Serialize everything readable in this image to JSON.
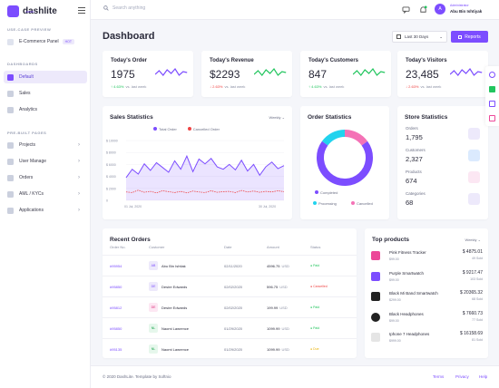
{
  "brand": {
    "name": "dashlite",
    "tag": "ADMIN"
  },
  "colors": {
    "accent": "#7c4dff",
    "up": "#22c55e",
    "down": "#ef4444"
  },
  "sidebar": {
    "sections": [
      "USE-CASE PREVIEW",
      "DASHBOARDS",
      "PRE-BUILT PAGES"
    ],
    "ecommerce": {
      "label": "E-Commerce Panel",
      "badge": "HOT"
    },
    "items": [
      {
        "label": "Default",
        "icon": "dashboard-icon"
      },
      {
        "label": "Sales",
        "icon": "sales-icon"
      },
      {
        "label": "Analytics",
        "icon": "analytics-icon"
      },
      {
        "label": "Projects",
        "icon": "projects-icon"
      },
      {
        "label": "User Manage",
        "icon": "users-icon"
      },
      {
        "label": "Orders",
        "icon": "orders-icon"
      },
      {
        "label": "AML / KYCs",
        "icon": "kyc-icon"
      },
      {
        "label": "Applications",
        "icon": "apps-icon"
      }
    ]
  },
  "topbar": {
    "search_placeholder": "Search anything",
    "user_role": "Administrator",
    "user_name": "Abu Bin Ishtiyak",
    "avatar": "A"
  },
  "header": {
    "title": "Dashboard",
    "range": "Last 30 Days",
    "reports": "Reports"
  },
  "kpis": [
    {
      "title": "Today's Order",
      "value": "1975",
      "trend": "4.63%",
      "dir": "up",
      "suffix": "vs. last week"
    },
    {
      "title": "Today's Revenue",
      "value": "$2293",
      "trend": "2.63%",
      "dir": "down",
      "suffix": "vs. last week"
    },
    {
      "title": "Today's Customers",
      "value": "847",
      "trend": "4.63%",
      "dir": "up",
      "suffix": "vs. last week"
    },
    {
      "title": "Today's Visitors",
      "value": "23,485",
      "trend": "2.63%",
      "dir": "down",
      "suffix": "vs. last week"
    }
  ],
  "sales": {
    "title": "Sales Statistics",
    "period": "Weekly",
    "legend": [
      "Total Order",
      "Cancelled Order"
    ],
    "x_labels": [
      "01 Jul, 2020",
      "30 Jul, 2020"
    ],
    "chart_data": {
      "type": "area",
      "y_ticks": [
        "$ 10000",
        "$ 8000",
        "$ 6000",
        "$ 4000",
        "$ 2000",
        "0"
      ],
      "series": [
        {
          "name": "Total Order",
          "values": [
            3800,
            5200,
            4400,
            6100,
            5000,
            6300,
            5500,
            4700,
            6600,
            5200,
            7400,
            4800,
            6900,
            6100,
            7000,
            5600,
            5200,
            6000,
            5100,
            6700,
            4900,
            6000,
            4200,
            5600,
            6400,
            5300,
            5800
          ]
        },
        {
          "name": "Cancelled Order",
          "values": [
            1400,
            1300,
            1700,
            1350,
            1500,
            1250,
            1600,
            1450,
            1300,
            1500,
            1250,
            1550,
            1400,
            1300,
            1600,
            1350,
            1450,
            1500,
            1300,
            1650,
            1400,
            1550,
            1350,
            1500,
            1400,
            1600,
            1450
          ]
        }
      ]
    }
  },
  "order_stats": {
    "title": "Order Statistics",
    "chart_data": {
      "type": "pie",
      "labels": [
        "Completed",
        "Processing",
        "Cancelled"
      ],
      "values": [
        70,
        15,
        15
      ],
      "colors": [
        "#7c4dff",
        "#22d3ee",
        "#f472b6"
      ]
    }
  },
  "store": {
    "title": "Store Statistics",
    "items": [
      {
        "label": "Orders",
        "value": "1,795",
        "color": "#ede9fb"
      },
      {
        "label": "Customers",
        "value": "2,327",
        "color": "#dbeafe"
      },
      {
        "label": "Products",
        "value": "674",
        "color": "#fce7f3"
      },
      {
        "label": "Categories",
        "value": "68",
        "color": "#ede9fb"
      }
    ]
  },
  "recent": {
    "title": "Recent Orders",
    "headers": [
      "Order No.",
      "Customer",
      "Date",
      "Amount",
      "Status"
    ],
    "rows": [
      {
        "id": "#95954",
        "initials": "AB",
        "name": "Abu Bin Ishtiak",
        "date": "02/11/2020",
        "amount": "4596.75",
        "cur": "USD",
        "status": "Paid",
        "sc": "#22c55e",
        "avbg": "#ede9fb",
        "avc": "#7c4dff"
      },
      {
        "id": "#95850",
        "initials": "DE",
        "name": "Desire Edwards",
        "date": "02/02/2020",
        "amount": "596.75",
        "cur": "USD",
        "status": "Cancelled",
        "sc": "#ef4444",
        "avbg": "#ede9fb",
        "avc": "#7c4dff"
      },
      {
        "id": "#95812",
        "initials": "DE",
        "name": "Desire Edwards",
        "date": "02/02/2020",
        "amount": "199.99",
        "cur": "USD",
        "status": "Paid",
        "sc": "#22c55e",
        "avbg": "#fde7f3",
        "avc": "#db2777"
      },
      {
        "id": "#95850",
        "initials": "NL",
        "name": "Naomi Lawrence",
        "date": "01/29/2020",
        "amount": "1099.99",
        "cur": "USD",
        "status": "Paid",
        "sc": "#22c55e",
        "avbg": "#e6f7ec",
        "avc": "#16a34a"
      },
      {
        "id": "#95135",
        "initials": "NL",
        "name": "Naomi Lawrence",
        "date": "01/29/2020",
        "amount": "1099.99",
        "cur": "USD",
        "status": "Due",
        "sc": "#eab308",
        "avbg": "#e6f7ec",
        "avc": "#16a34a"
      }
    ]
  },
  "top": {
    "title": "Top products",
    "period": "Weekly",
    "items": [
      {
        "name": "Pink Fitness Tracker",
        "price": "$99.00",
        "amount": "$ 4875.01",
        "sold": "49 Sold",
        "c": "#ec4899"
      },
      {
        "name": "Purple Smartwatch",
        "price": "$99.00",
        "amount": "$ 9217.47",
        "sold": "103 Sold",
        "c": "#7c4dff"
      },
      {
        "name": "Black Mi Band Smartwatch",
        "price": "$299.00",
        "amount": "$ 20365.32",
        "sold": "68 Sold",
        "c": "#222"
      },
      {
        "name": "Black Headphones",
        "price": "$99.00",
        "amount": "$ 7660.73",
        "sold": "77 Sold",
        "c": "#222"
      },
      {
        "name": "Iphone 7 Headphones",
        "price": "$999.00",
        "amount": "$ 16158.69",
        "sold": "81 Sold",
        "c": "#e5e5e5"
      }
    ]
  },
  "footer": {
    "copy": "© 2020 DashLite. Template by Softnio",
    "links": [
      "Terms",
      "Privacy",
      "Help"
    ]
  }
}
